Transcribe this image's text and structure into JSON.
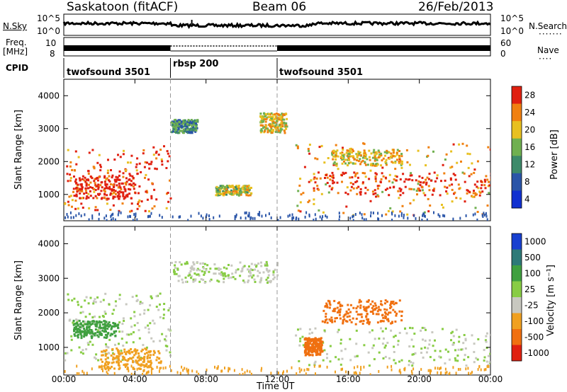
{
  "header": {
    "title": "Saskatoon (fitACF)",
    "beam": "Beam 06",
    "date": "26/Feb/2013"
  },
  "aux_panels": {
    "nsky_label": "N.Sky",
    "nsearch_label": "N.Search",
    "freq_label_1": "Freq.",
    "freq_label_2": "[MHz]",
    "nave_label": "Nave",
    "cpid_label": "CPID",
    "nsky_ticks": [
      "10^5",
      "10^0"
    ],
    "nsearch_ticks": [
      "10^5",
      "10^0"
    ],
    "freq_ticks": [
      "10",
      "8"
    ],
    "nave_ticks": [
      "60",
      "0"
    ]
  },
  "cpid": {
    "segments": [
      {
        "label": "twofsound 3501",
        "start_hour": 0,
        "end_hour": 6
      },
      {
        "label": "rbsp 200",
        "start_hour": 6,
        "end_hour": 12
      },
      {
        "label": "twofsound 3501",
        "start_hour": 12,
        "end_hour": 24
      }
    ]
  },
  "chart_data": [
    {
      "type": "heatmap",
      "name": "power-panel",
      "ylabel": "Slant Range [km]",
      "xlim": [
        0,
        24
      ],
      "ylim": [
        200,
        4500
      ],
      "yticks": [
        1000,
        2000,
        3000,
        4000
      ],
      "colorbar_label": "Power [dB]",
      "colorbar_ticks": [
        "4",
        "8",
        "12",
        "16",
        "20",
        "24",
        "28"
      ],
      "colorbar_colors": [
        "#1030d0",
        "#2a55a8",
        "#3d8a6a",
        "#70b050",
        "#e8c020",
        "#f08010",
        "#e02010"
      ],
      "regions": [
        {
          "x": [
            0,
            6
          ],
          "y": [
            500,
            2500
          ],
          "value": 26
        },
        {
          "x": [
            0.5,
            4
          ],
          "y": [
            900,
            1600
          ],
          "value": 30
        },
        {
          "x": [
            6,
            7.5
          ],
          "y": [
            2900,
            3300
          ],
          "value": 12
        },
        {
          "x": [
            8.5,
            10.5
          ],
          "y": [
            1000,
            1300
          ],
          "value": 18
        },
        {
          "x": [
            11,
            12.5
          ],
          "y": [
            2900,
            3500
          ],
          "value": 20
        },
        {
          "x": [
            13,
            24
          ],
          "y": [
            400,
            2600
          ],
          "value": 22
        },
        {
          "x": [
            14,
            24
          ],
          "y": [
            1000,
            1700
          ],
          "value": 28
        },
        {
          "x": [
            15,
            19
          ],
          "y": [
            1900,
            2400
          ],
          "value": 20
        }
      ]
    },
    {
      "type": "heatmap",
      "name": "velocity-panel",
      "ylabel": "Slant Range [km]",
      "xlabel": "Time UT",
      "xlim": [
        0,
        24
      ],
      "xticks": [
        "00:00",
        "04:00",
        "08:00",
        "12:00",
        "16:00",
        "20:00",
        "00:00"
      ],
      "ylim": [
        200,
        4500
      ],
      "yticks": [
        1000,
        2000,
        3000,
        4000
      ],
      "colorbar_label": "Velocity [m s⁻¹]",
      "colorbar_ticks": [
        "1000",
        "500",
        "100",
        "25",
        "-25",
        "-100",
        "-500",
        "-1000"
      ],
      "colorbar_colors": [
        "#1840d0",
        "#2e7a78",
        "#40a040",
        "#88cc44",
        "#c8c8c0",
        "#f0a020",
        "#f07010",
        "#e02010"
      ],
      "regions": [
        {
          "x": [
            0,
            6
          ],
          "y": [
            600,
            2600
          ],
          "value": 0
        },
        {
          "x": [
            0.5,
            3
          ],
          "y": [
            1300,
            1800
          ],
          "value": 100
        },
        {
          "x": [
            2,
            5.5
          ],
          "y": [
            400,
            1000
          ],
          "value": -100
        },
        {
          "x": [
            6,
            12
          ],
          "y": [
            2900,
            3500
          ],
          "value": 0
        },
        {
          "x": [
            13,
            24
          ],
          "y": [
            500,
            1600
          ],
          "value": 0
        },
        {
          "x": [
            14.5,
            19
          ],
          "y": [
            1700,
            2400
          ],
          "value": -500
        },
        {
          "x": [
            13.5,
            14.5
          ],
          "y": [
            800,
            1300
          ],
          "value": -500
        }
      ]
    }
  ],
  "panels": {
    "nsky_series": "N.Sky",
    "nsearch_series": "N.Search",
    "freq_series": "Freq.",
    "nave_series": "Nave"
  }
}
